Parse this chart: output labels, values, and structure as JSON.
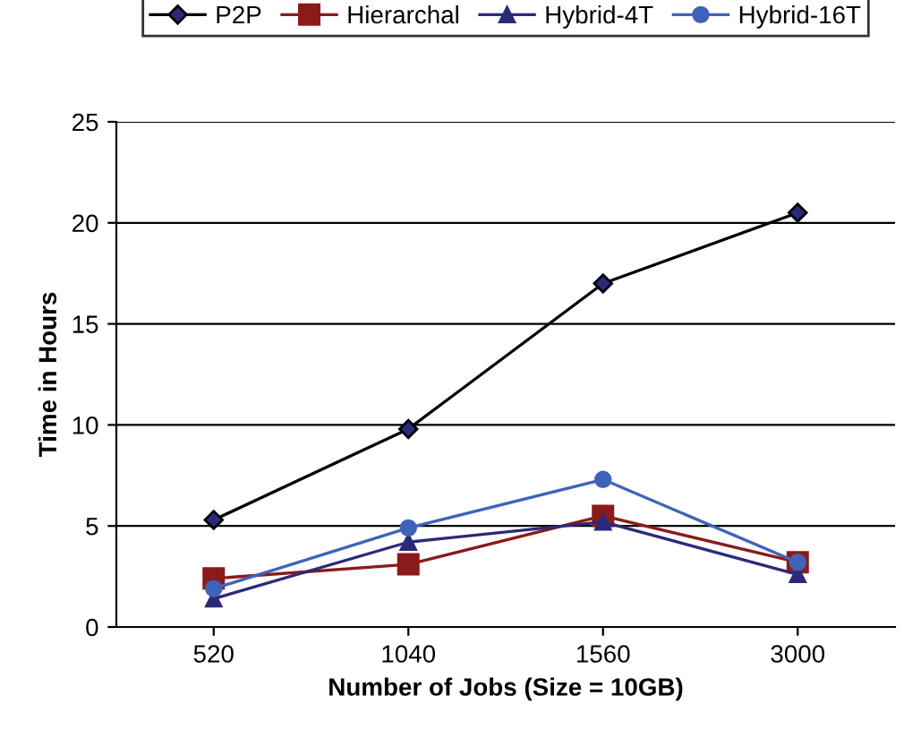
{
  "chart_data": {
    "type": "line",
    "xlabel": "Number of Jobs (Size = 10GB)",
    "ylabel": "Time in Hours",
    "categories": [
      "520",
      "1040",
      "1560",
      "3000"
    ],
    "series": [
      {
        "name": "P2P",
        "color": "#000000",
        "marker": "diamond",
        "values": [
          5.3,
          9.8,
          17,
          20.5
        ]
      },
      {
        "name": "Hierarchal",
        "color": "#8b1a1a",
        "marker": "square",
        "values": [
          2.4,
          3.1,
          5.5,
          3.2
        ]
      },
      {
        "name": "Hybrid-4T",
        "color": "#2b2a7a",
        "marker": "triangle",
        "values": [
          1.4,
          4.2,
          5.2,
          2.6
        ]
      },
      {
        "name": "Hybrid-16T",
        "color": "#3f63b8",
        "marker": "circle",
        "values": [
          1.9,
          4.9,
          7.3,
          3.2
        ]
      }
    ],
    "ylim": [
      0,
      25
    ],
    "yticks": [
      0,
      5,
      10,
      15,
      20,
      25
    ],
    "grid": "y",
    "legend": "top",
    "line_style": "solid"
  }
}
